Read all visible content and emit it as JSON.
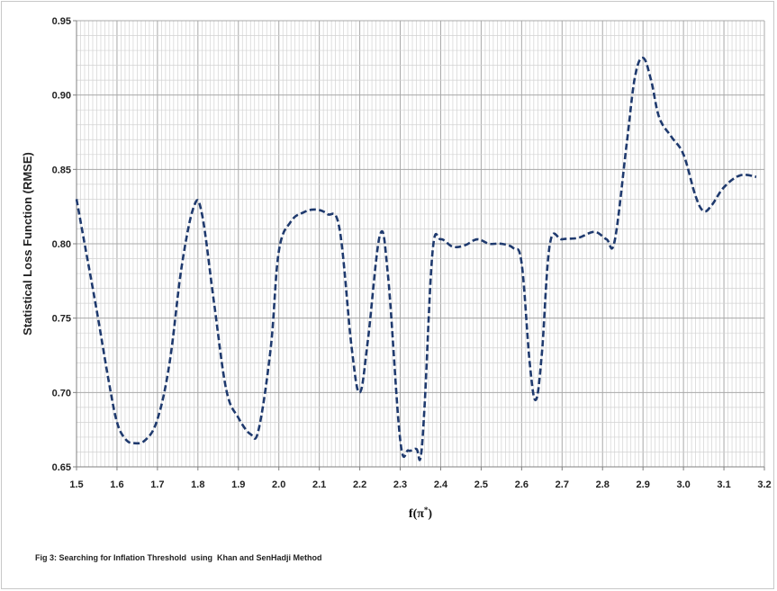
{
  "chart_data": {
    "type": "line",
    "title": "",
    "xlabel": "f(π*)",
    "ylabel": "Statistical Loss Function (RMSE)",
    "xlim": [
      1.5,
      3.2
    ],
    "ylim": [
      0.65,
      0.95
    ],
    "x_ticks": [
      "1.5",
      "1.6",
      "1.7",
      "1.8",
      "1.9",
      "2.0",
      "2.1",
      "2.2",
      "2.3",
      "2.4",
      "2.5",
      "2.6",
      "2.7",
      "2.8",
      "2.9",
      "3.0",
      "3.1",
      "3.2"
    ],
    "y_ticks": [
      "0.65",
      "0.70",
      "0.75",
      "0.80",
      "0.85",
      "0.90",
      "0.95"
    ],
    "grid": true,
    "legend": "none",
    "series": [
      {
        "color": "#1f3a6e",
        "style": "dashed",
        "x": [
          1.5,
          1.52,
          1.55,
          1.58,
          1.6,
          1.62,
          1.64,
          1.67,
          1.7,
          1.73,
          1.76,
          1.79,
          1.81,
          1.84,
          1.87,
          1.9,
          1.93,
          1.95,
          1.98,
          2.0,
          2.03,
          2.06,
          2.09,
          2.12,
          2.15,
          2.18,
          2.2,
          2.22,
          2.25,
          2.27,
          2.3,
          2.32,
          2.34,
          2.35,
          2.36,
          2.38,
          2.4,
          2.43,
          2.46,
          2.49,
          2.52,
          2.55,
          2.58,
          2.6,
          2.62,
          2.635,
          2.65,
          2.67,
          2.7,
          2.74,
          2.78,
          2.81,
          2.83,
          2.86,
          2.88,
          2.9,
          2.92,
          2.94,
          2.97,
          3.0,
          3.03,
          3.05,
          3.07,
          3.1,
          3.14,
          3.18
        ],
        "y": [
          0.83,
          0.8,
          0.755,
          0.707,
          0.68,
          0.669,
          0.666,
          0.668,
          0.682,
          0.72,
          0.785,
          0.825,
          0.82,
          0.76,
          0.702,
          0.683,
          0.672,
          0.675,
          0.73,
          0.795,
          0.815,
          0.821,
          0.823,
          0.82,
          0.81,
          0.73,
          0.7,
          0.735,
          0.806,
          0.778,
          0.668,
          0.661,
          0.662,
          0.656,
          0.69,
          0.795,
          0.803,
          0.798,
          0.799,
          0.803,
          0.8,
          0.8,
          0.797,
          0.787,
          0.72,
          0.695,
          0.726,
          0.8,
          0.803,
          0.804,
          0.808,
          0.803,
          0.802,
          0.868,
          0.912,
          0.925,
          0.91,
          0.885,
          0.872,
          0.86,
          0.832,
          0.822,
          0.826,
          0.838,
          0.846,
          0.845
        ]
      }
    ]
  },
  "caption": "Fig 3: Searching for Inflation Threshold  using  Khan and SenHadji Method"
}
